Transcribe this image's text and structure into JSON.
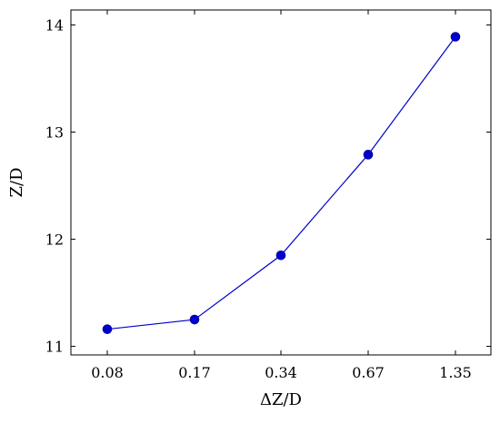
{
  "chart_data": {
    "type": "line",
    "xlabel": "ΔZ/D",
    "ylabel": "Z/D",
    "categories": [
      "0.08",
      "0.17",
      "0.34",
      "0.67",
      "1.35"
    ],
    "series": [
      {
        "values": [
          11.16,
          11.25,
          11.85,
          12.79,
          13.89
        ]
      }
    ],
    "ylim": [
      10.92,
      14.14
    ],
    "yticks": [
      11,
      12,
      13,
      14
    ],
    "grid": false,
    "colors": {
      "series": "#0000cc",
      "marker": "#0000cc",
      "axis": "#000000"
    }
  }
}
